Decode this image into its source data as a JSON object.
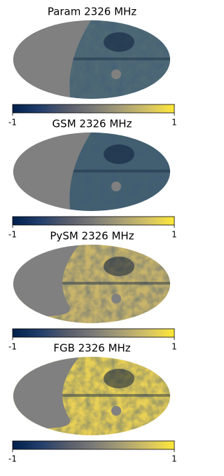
{
  "colormap": [
    "#00204c",
    "#213d6b",
    "#555b6c",
    "#7b7a77",
    "#a69d75",
    "#d3c164",
    "#fee838"
  ],
  "panels": [
    {
      "title": "Param 2326 MHz",
      "map_color": "#4f6a74",
      "colorbar": {
        "lim": [
          -1,
          1
        ],
        "ticks": [
          -1,
          1
        ]
      }
    },
    {
      "title": "GSM 2326 MHz",
      "map_color": "#43606f",
      "colorbar": {
        "lim": [
          -1,
          1
        ],
        "ticks": [
          -1,
          1
        ]
      }
    },
    {
      "title": "PySM 2326 MHz",
      "map_color": "#c9b46a",
      "colorbar": {
        "lim": [
          -1,
          1
        ],
        "ticks": [
          -1,
          1
        ]
      }
    },
    {
      "title": "FGB 2326 MHz",
      "map_color": "#e8cf55",
      "colorbar": {
        "lim": [
          -1,
          1
        ],
        "ticks": [
          -1,
          1
        ]
      }
    }
  ]
}
